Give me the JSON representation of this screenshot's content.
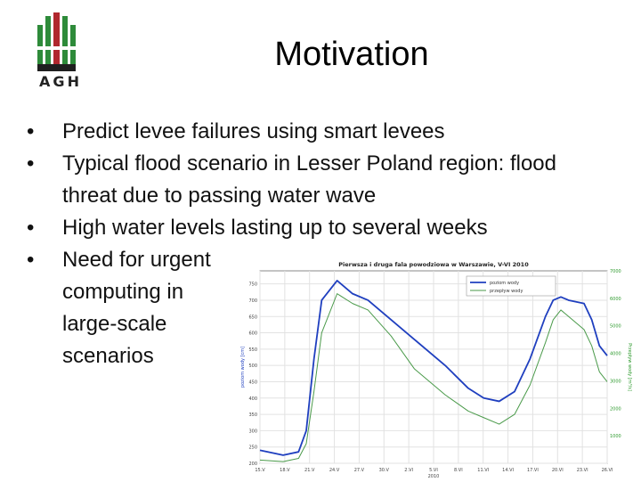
{
  "logo": {
    "text": "AGH"
  },
  "title": "Motivation",
  "bullets": [
    {
      "text": "Predict levee failures using smart levees"
    },
    {
      "text": "Typical flood scenario in Lesser Poland region: flood threat due to passing water wave"
    },
    {
      "text": "High water levels lasting up to several weeks"
    },
    {
      "text": "Need for urgent computing in large-scale scenarios"
    }
  ],
  "bullet_symbol": "•",
  "colors": {
    "logo_green": "#2e8b3a",
    "logo_red": "#b0282e",
    "series1": "#1f3fbf",
    "series2": "#4a9a4a",
    "right_axis": "#2e9a2e"
  },
  "chart_data": {
    "type": "line",
    "title": "Pierwsza i druga fala powodziowa w Warszawie, V-VI 2010",
    "xlabel": "2010",
    "ylabel": "poziom wody [cm]",
    "y2label": "Przepływ wody [m³/s]",
    "ylim": [
      200,
      790
    ],
    "y2lim": [
      0,
      7000
    ],
    "grid": true,
    "legend_position": "top-right",
    "x_ticks": [
      "15.V",
      "18.V",
      "21.V",
      "24.V",
      "27.V",
      "30.V",
      "2.VI",
      "5.VI",
      "8.VI",
      "11.VI",
      "14.VI",
      "17.VI",
      "20.VI",
      "23.VI",
      "26.VI"
    ],
    "y_ticks": [
      200,
      250,
      300,
      350,
      400,
      450,
      500,
      550,
      600,
      650,
      700,
      750
    ],
    "y2_ticks": [
      1000,
      2000,
      3000,
      4000,
      5000,
      6000,
      7000
    ],
    "x": [
      0,
      3,
      5,
      6,
      7,
      8,
      10,
      12,
      14,
      17,
      20,
      24,
      27,
      29,
      31,
      33,
      35,
      37,
      38,
      39,
      40,
      42,
      43,
      44,
      45
    ],
    "series": [
      {
        "name": "poziom wody",
        "values": [
          240,
          225,
          235,
          300,
          520,
          700,
          760,
          720,
          700,
          640,
          580,
          500,
          430,
          400,
          390,
          420,
          520,
          650,
          700,
          710,
          700,
          690,
          640,
          560,
          530
        ]
      },
      {
        "name": "przepływ wody",
        "values": [
          210,
          205,
          215,
          260,
          420,
          600,
          720,
          690,
          670,
          590,
          490,
          410,
          360,
          340,
          320,
          350,
          440,
          570,
          640,
          670,
          650,
          610,
          560,
          480,
          450
        ]
      }
    ]
  }
}
